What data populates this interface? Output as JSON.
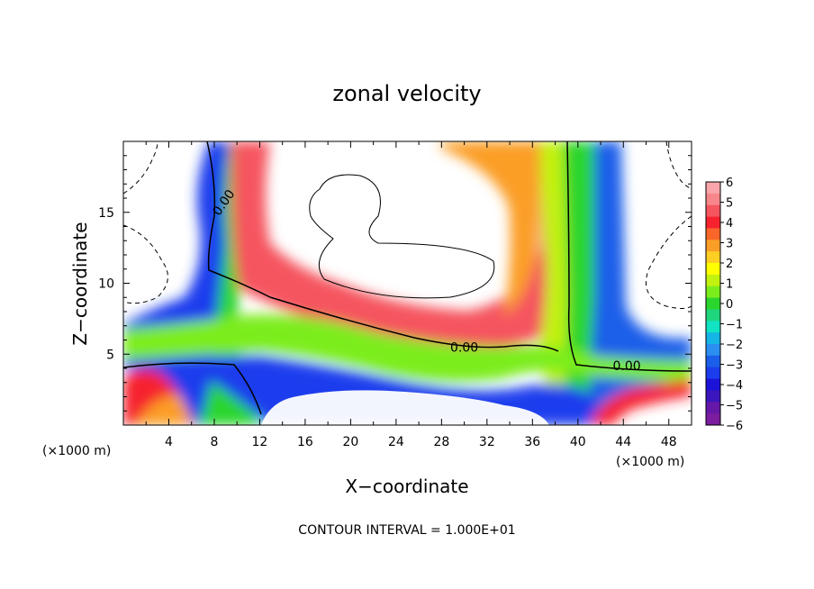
{
  "chart_data": {
    "type": "heatmap",
    "title": "zonal velocity",
    "xlabel": "X−coordinate",
    "ylabel": "Z−coordinate",
    "x_unit_left": "(×1000 m)",
    "x_unit_right": "(×1000 m)",
    "xlim": [
      0,
      50
    ],
    "ylim": [
      0,
      20
    ],
    "x_ticks": [
      4,
      8,
      12,
      16,
      20,
      24,
      28,
      32,
      36,
      40,
      44,
      48
    ],
    "y_ticks": [
      5,
      10,
      15
    ],
    "contour_interval_text": "CONTOUR INTERVAL = 1.000E+01",
    "contour_labels": [
      {
        "text": "0.00",
        "x": 8.8,
        "y": 15.7
      },
      {
        "text": "0.00",
        "x": 30.0,
        "y": 5.5
      },
      {
        "text": "0.00",
        "x": 44.3,
        "y": 4.2
      }
    ],
    "colorbar": {
      "min": -6,
      "max": 6,
      "labels": [
        "6",
        "5",
        "4",
        "3",
        "2",
        "1",
        "0",
        "−1",
        "−2",
        "−3",
        "−4",
        "−5",
        "−6"
      ],
      "colors": [
        "#f9a5aa",
        "#f7868a",
        "#f5555f",
        "#f6232e",
        "#f9662a",
        "#fb9e27",
        "#fdcf24",
        "#ffff00",
        "#c2f210",
        "#7ced1c",
        "#2ad52d",
        "#1fd67c",
        "#11e3c4",
        "#15b5e6",
        "#2b8ef0",
        "#1b5ee9",
        "#1b3ded",
        "#1d12d8",
        "#3b16bc",
        "#6517a8",
        "#7c1c9e"
      ]
    },
    "grid": false
  }
}
